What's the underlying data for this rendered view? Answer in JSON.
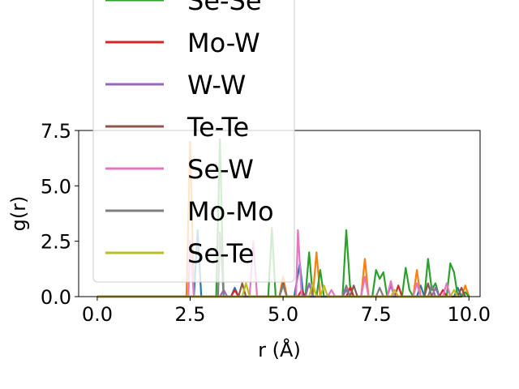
{
  "chart_data": {
    "type": "line",
    "xlabel": "r (Å)",
    "ylabel": "g(r)",
    "xlim": [
      -0.5,
      10.3
    ],
    "ylim": [
      0,
      7.5
    ],
    "x_ticks": [
      "0.0",
      "2.5",
      "5.0",
      "7.5",
      "10.0"
    ],
    "y_ticks": [
      "0.0",
      "2.5",
      "5.0",
      "7.5"
    ],
    "legend_placement": "upper-left, overlapping plot",
    "series": [
      {
        "name": "",
        "color": "#1f77b4",
        "points": [
          [
            0,
            0
          ],
          [
            2.6,
            0
          ],
          [
            2.7,
            3.0
          ],
          [
            2.8,
            0
          ],
          [
            3.6,
            0
          ],
          [
            3.7,
            0.4
          ],
          [
            3.8,
            0
          ],
          [
            5.3,
            0
          ],
          [
            5.45,
            1.5
          ],
          [
            5.55,
            0
          ],
          [
            8.6,
            0
          ],
          [
            8.7,
            0.5
          ],
          [
            8.8,
            0
          ],
          [
            9.6,
            0
          ],
          [
            9.7,
            0.4
          ],
          [
            9.8,
            0
          ]
        ]
      },
      {
        "name": "",
        "color": "#ff7f0e",
        "points": [
          [
            0,
            0
          ],
          [
            2.4,
            0
          ],
          [
            2.5,
            7.0
          ],
          [
            2.6,
            0
          ],
          [
            4.9,
            0
          ],
          [
            5.0,
            0.9
          ],
          [
            5.1,
            0
          ],
          [
            5.8,
            0
          ],
          [
            5.9,
            2.0
          ],
          [
            6.0,
            0
          ],
          [
            7.1,
            0
          ],
          [
            7.2,
            1.7
          ],
          [
            7.3,
            0
          ],
          [
            8.5,
            0
          ],
          [
            8.6,
            1.2
          ],
          [
            8.7,
            0
          ],
          [
            9.8,
            0
          ],
          [
            9.9,
            0.5
          ],
          [
            10,
            0
          ]
        ]
      },
      {
        "name": "Se-Se",
        "color": "#2ca02c",
        "points": [
          [
            0,
            0
          ],
          [
            3.2,
            0
          ],
          [
            3.3,
            7.1
          ],
          [
            3.4,
            0
          ],
          [
            4.6,
            0
          ],
          [
            4.7,
            3.1
          ],
          [
            4.8,
            0
          ],
          [
            5.6,
            0
          ],
          [
            5.7,
            2.0
          ],
          [
            5.8,
            0
          ],
          [
            5.9,
            0
          ],
          [
            6.0,
            1.2
          ],
          [
            6.1,
            0
          ],
          [
            6.6,
            0
          ],
          [
            6.7,
            3.0
          ],
          [
            6.8,
            0.5
          ],
          [
            6.9,
            0
          ],
          [
            7.4,
            0
          ],
          [
            7.5,
            1.2
          ],
          [
            7.6,
            0.8
          ],
          [
            7.7,
            1.1
          ],
          [
            7.8,
            0
          ],
          [
            8.2,
            0
          ],
          [
            8.3,
            1.3
          ],
          [
            8.4,
            0.3
          ],
          [
            8.5,
            0
          ],
          [
            8.8,
            0
          ],
          [
            8.9,
            1.7
          ],
          [
            9.0,
            0.3
          ],
          [
            9.1,
            0.6
          ],
          [
            9.2,
            0
          ],
          [
            9.4,
            0
          ],
          [
            9.5,
            1.5
          ],
          [
            9.6,
            1.1
          ],
          [
            9.7,
            0
          ],
          [
            9.8,
            0
          ],
          [
            9.9,
            0.2
          ],
          [
            10,
            0
          ]
        ]
      },
      {
        "name": "Mo-W",
        "color": "#d62728",
        "points": [
          [
            0,
            0
          ],
          [
            3.6,
            0
          ],
          [
            3.7,
            0.3
          ],
          [
            3.8,
            0
          ],
          [
            5.4,
            0
          ],
          [
            5.5,
            0.3
          ],
          [
            5.6,
            0
          ],
          [
            6.7,
            0
          ],
          [
            6.8,
            0.4
          ],
          [
            6.9,
            0
          ],
          [
            8.0,
            0
          ],
          [
            8.1,
            0.5
          ],
          [
            8.2,
            0
          ],
          [
            9.2,
            0
          ],
          [
            9.3,
            0.3
          ],
          [
            9.4,
            0
          ]
        ]
      },
      {
        "name": "W-W",
        "color": "#9467bd",
        "points": [
          [
            0,
            0
          ],
          [
            3.3,
            0
          ],
          [
            3.4,
            0.3
          ],
          [
            3.5,
            0
          ],
          [
            5.6,
            0
          ],
          [
            5.7,
            0.6
          ],
          [
            5.8,
            0
          ],
          [
            6.6,
            0
          ],
          [
            6.7,
            0.3
          ],
          [
            6.8,
            0
          ],
          [
            7.8,
            0
          ],
          [
            7.9,
            0.5
          ],
          [
            8.0,
            0
          ],
          [
            9.0,
            0
          ],
          [
            9.1,
            0.4
          ],
          [
            9.2,
            0
          ]
        ]
      },
      {
        "name": "Te-Te",
        "color": "#8c564b",
        "points": [
          [
            0,
            0
          ],
          [
            3.8,
            0
          ],
          [
            3.9,
            0.6
          ],
          [
            4.0,
            0
          ],
          [
            4.9,
            0
          ],
          [
            5.0,
            0.6
          ],
          [
            5.1,
            0
          ],
          [
            6.8,
            0
          ],
          [
            6.9,
            0.5
          ],
          [
            7.0,
            0
          ],
          [
            8.8,
            0
          ],
          [
            8.9,
            0.6
          ],
          [
            9.0,
            0
          ],
          [
            9.7,
            0
          ],
          [
            9.8,
            0.4
          ],
          [
            9.9,
            0
          ]
        ]
      },
      {
        "name": "Se-W",
        "color": "#e377c2",
        "points": [
          [
            0,
            0
          ],
          [
            2.45,
            0
          ],
          [
            2.5,
            2.5
          ],
          [
            2.6,
            0
          ],
          [
            4.1,
            0
          ],
          [
            4.2,
            2.5
          ],
          [
            4.3,
            0
          ],
          [
            5.35,
            0
          ],
          [
            5.4,
            3.0
          ],
          [
            5.5,
            0
          ],
          [
            6.2,
            0
          ],
          [
            6.3,
            0.3
          ],
          [
            6.4,
            0
          ],
          [
            7.1,
            0
          ],
          [
            7.2,
            0.9
          ],
          [
            7.3,
            0
          ],
          [
            7.8,
            0
          ],
          [
            7.9,
            0.7
          ],
          [
            8.0,
            0
          ],
          [
            8.5,
            0
          ],
          [
            8.6,
            0.6
          ],
          [
            8.7,
            0
          ],
          [
            9.3,
            0
          ],
          [
            9.4,
            0.6
          ],
          [
            9.5,
            0
          ]
        ]
      },
      {
        "name": "Mo-Mo",
        "color": "#7f7f7f",
        "points": [
          [
            0,
            0
          ],
          [
            3.25,
            0
          ],
          [
            3.3,
            2.9
          ],
          [
            3.4,
            0
          ],
          [
            4.9,
            0
          ],
          [
            5.0,
            0.5
          ],
          [
            5.1,
            0
          ],
          [
            6.6,
            0
          ],
          [
            6.7,
            0.5
          ],
          [
            6.8,
            0
          ],
          [
            7.5,
            0
          ],
          [
            7.6,
            0.4
          ],
          [
            7.7,
            0
          ],
          [
            8.9,
            0
          ],
          [
            9.0,
            0.5
          ],
          [
            9.1,
            0
          ]
        ]
      },
      {
        "name": "Se-Te",
        "color": "#bcbd22",
        "points": [
          [
            0,
            0
          ],
          [
            3.9,
            0
          ],
          [
            4.0,
            0.6
          ],
          [
            4.1,
            0
          ],
          [
            5.7,
            0
          ],
          [
            5.8,
            0.6
          ],
          [
            5.9,
            0
          ],
          [
            6.0,
            0
          ],
          [
            6.1,
            0.5
          ],
          [
            6.2,
            0
          ],
          [
            7.9,
            0
          ],
          [
            8.0,
            0.3
          ],
          [
            8.1,
            0
          ],
          [
            9.5,
            0
          ],
          [
            9.6,
            0.3
          ],
          [
            9.7,
            0
          ]
        ]
      }
    ]
  }
}
